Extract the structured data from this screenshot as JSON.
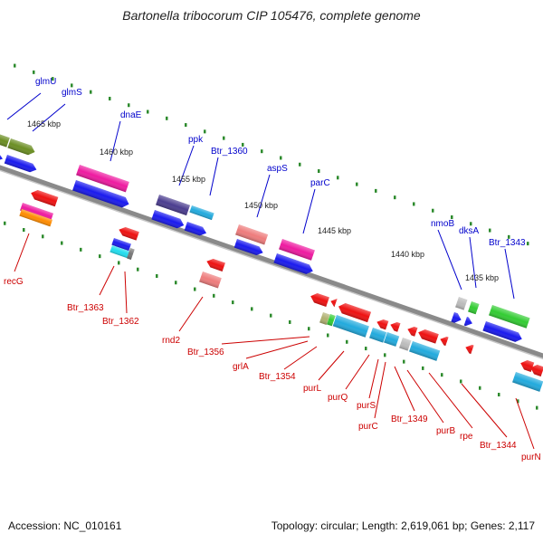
{
  "title": "Bartonella tribocorum CIP 105476, complete genome",
  "accession": "Accession: NC_010161",
  "summary": "Topology: circular; Length: 2,619,061 bp; Genes: 2,117",
  "colors": {
    "backbone": "#8a8a8a",
    "tick": "#2e8b2e",
    "forward_label": "#0000cc",
    "reverse_label": "#cc0000"
  },
  "scale_labels": [
    "1465 kbp",
    "1460 kbp",
    "1455 kbp",
    "1450 kbp",
    "1445 kbp",
    "1440 kbp",
    "1435 kbp"
  ],
  "forward_genes": [
    "glmU",
    "glmS",
    "dnaE",
    "ppk",
    "Btr_1360",
    "aspS",
    "parC",
    "nmoB",
    "dksA",
    "Btr_1343"
  ],
  "reverse_genes": [
    "recG",
    "Btr_1363",
    "Btr_1362",
    "rnd2",
    "Btr_1356",
    "grlA",
    "Btr_1354",
    "purL",
    "purQ",
    "purS",
    "purC",
    "Btr_1349",
    "purB",
    "rpe",
    "Btr_1344",
    "purN"
  ]
}
